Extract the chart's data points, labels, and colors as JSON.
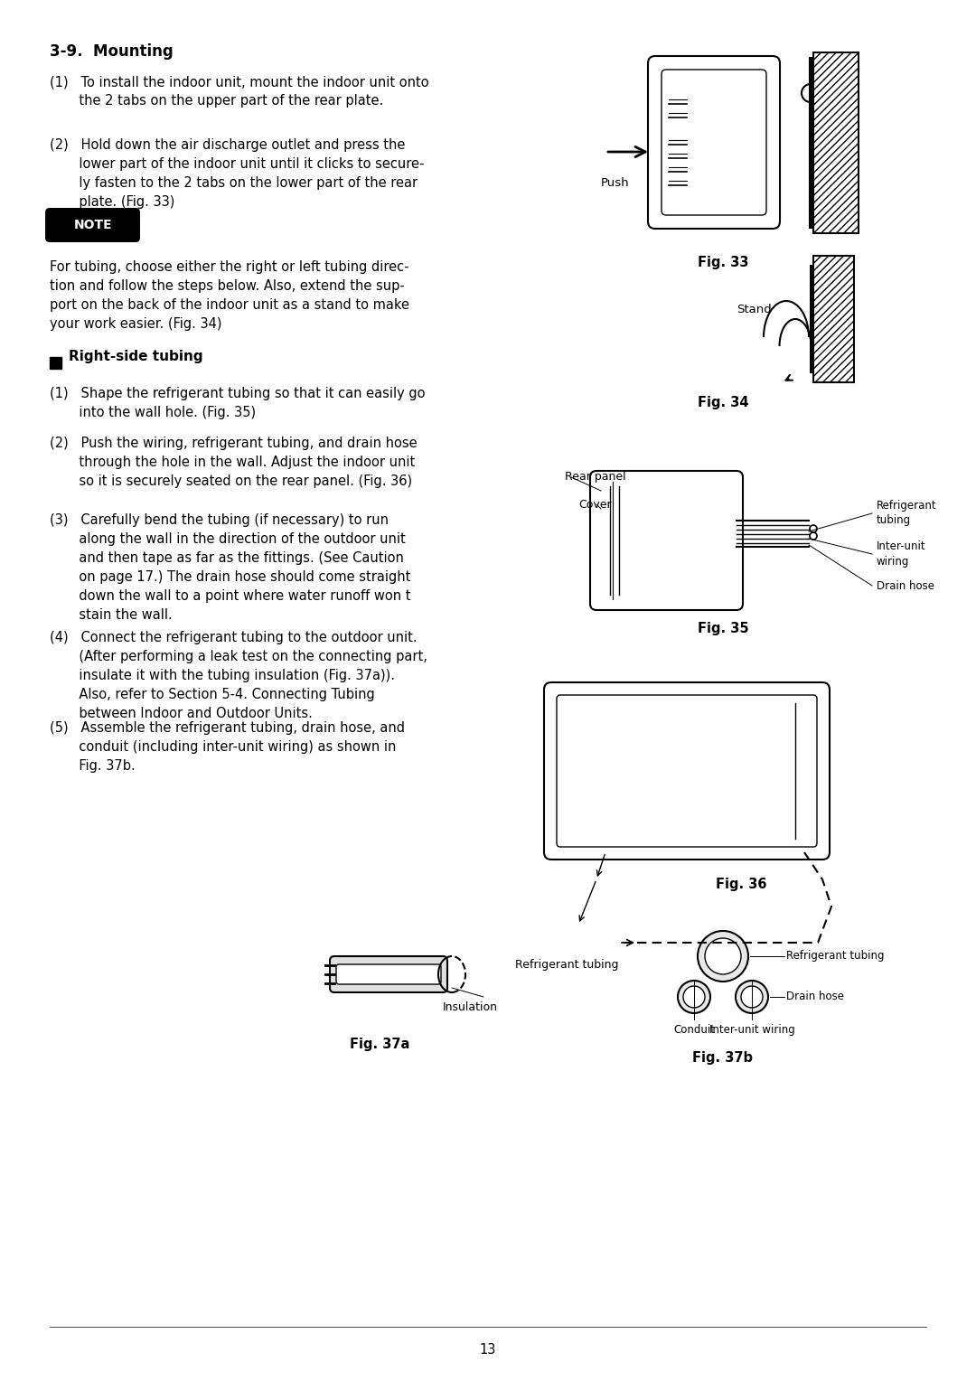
{
  "bg_color": "#ffffff",
  "text_color": "#000000",
  "title": "3-9.  Mounting",
  "section_heading": "Right-side tubing",
  "note_text": "NOTE",
  "page_number": "13",
  "mounting_steps": [
    "(1)   To install the indoor unit, mount the indoor unit onto\n       the 2 tabs on the upper part of the rear plate.",
    "(2)   Hold down the air discharge outlet and press the\n       lower part of the indoor unit until it clicks to secure-\n       ly fasten to the 2 tabs on the lower part of the rear\n       plate. (Fig. 33)"
  ],
  "note_body": "For tubing, choose either the right or left tubing direc-\ntion and follow the steps below. Also, extend the sup-\nport on the back of the indoor unit as a stand to make\nyour work easier. (Fig. 34)",
  "right_side_steps": [
    "(1)   Shape the refrigerant tubing so that it can easily go\n       into the wall hole. (Fig. 35)",
    "(2)   Push the wiring, refrigerant tubing, and drain hose\n       through the hole in the wall. Adjust the indoor unit\n       so it is securely seated on the rear panel. (Fig. 36)",
    "(3)   Carefully bend the tubing (if necessary) to run\n       along the wall in the direction of the outdoor unit\n       and then tape as far as the fittings. (See Caution\n       on page 17.) The drain hose should come straight\n       down the wall to a point where water runoff won t\n       stain the wall.",
    "(4)   Connect the refrigerant tubing to the outdoor unit.\n       (After performing a leak test on the connecting part,\n       insulate it with the tubing insulation (Fig. 37a)).\n       Also, refer to Section 5-4. Connecting Tubing\n       between Indoor and Outdoor Units.",
    "(5)   Assemble the refrigerant tubing, drain hose, and\n       conduit (including inter-unit wiring) as shown in\n       Fig. 37b."
  ]
}
